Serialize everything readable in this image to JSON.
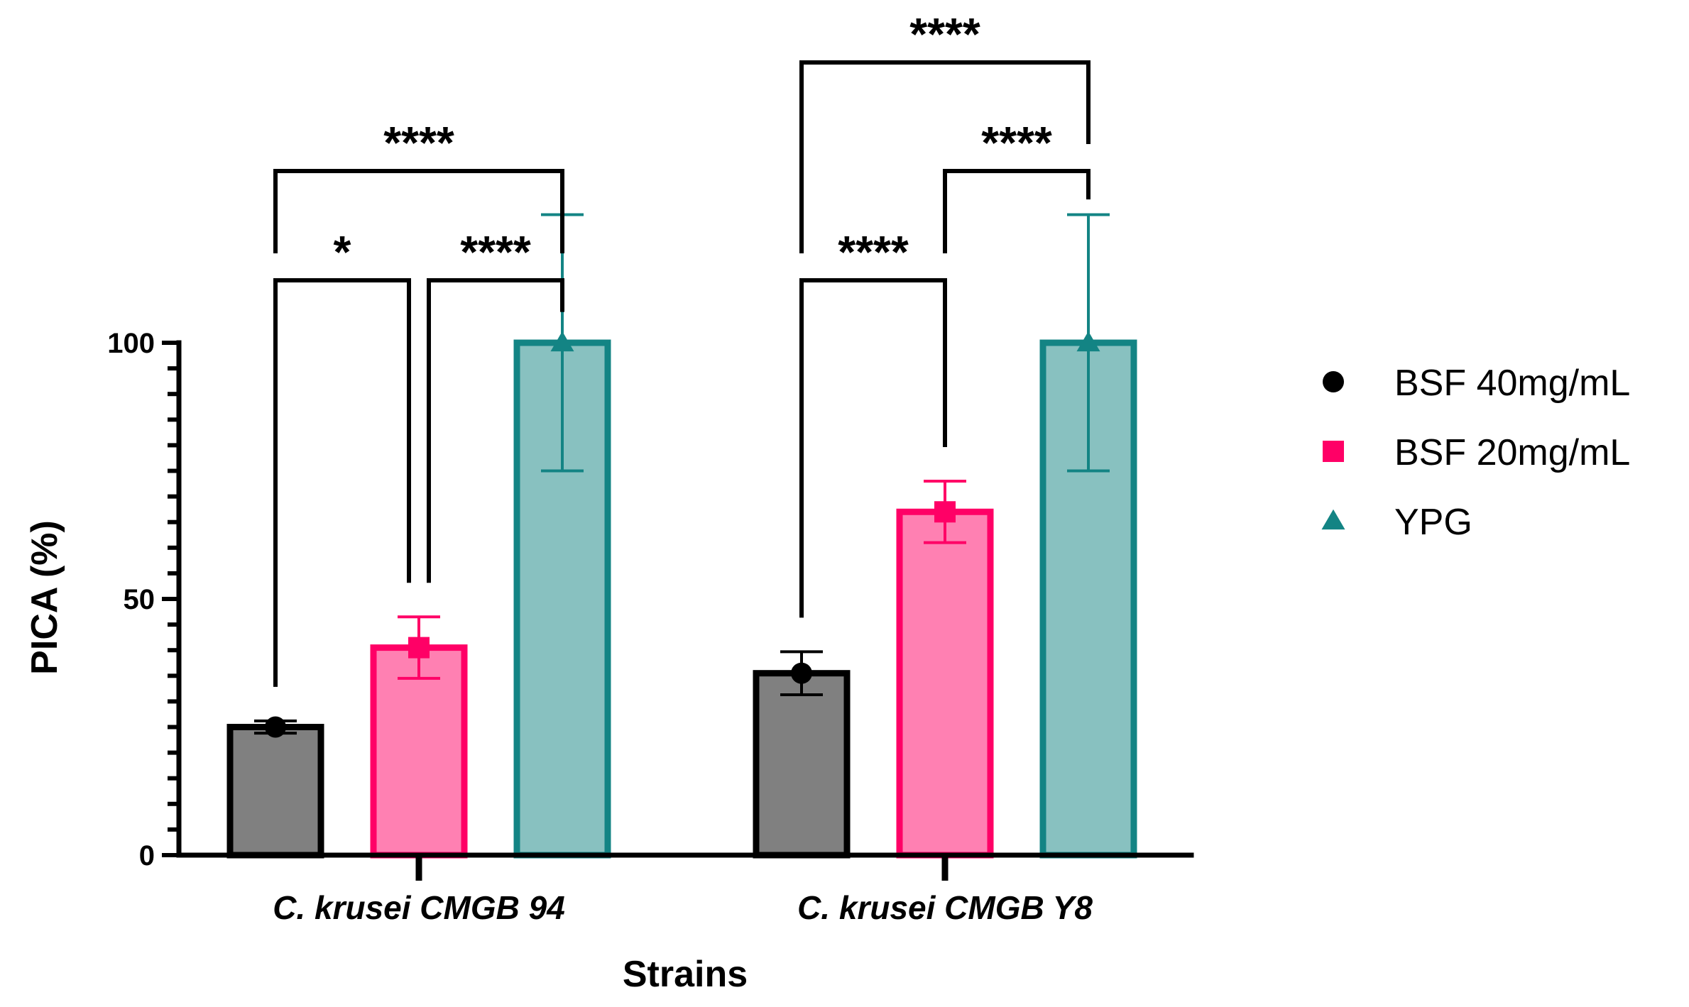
{
  "chart_data": {
    "type": "bar",
    "title": "",
    "xlabel": "Strains",
    "ylabel": "PICA (%)",
    "ylim": [
      0,
      100
    ],
    "yticks": [
      0,
      50,
      100
    ],
    "categories": [
      "C. krusei CMGB 94",
      "C. krusei CMGB Y8"
    ],
    "series": [
      {
        "name": "BSF 40mg/mL",
        "marker": "circle",
        "color": "#000000",
        "fill": "#808080",
        "stroke": "#000000",
        "values": [
          25,
          35.5
        ],
        "errors": [
          1.2,
          4.2
        ]
      },
      {
        "name": "BSF 20mg/mL",
        "marker": "square",
        "color": "#FF0066",
        "fill": "#FF80B2",
        "stroke": "#FF0066",
        "values": [
          40.5,
          67
        ],
        "errors": [
          6,
          6
        ]
      },
      {
        "name": "YPG",
        "marker": "triangle",
        "color": "#138484",
        "fill": "#88C1C0",
        "stroke": "#138484",
        "values": [
          100,
          100
        ],
        "errors": [
          25,
          25
        ]
      }
    ],
    "significance": [
      {
        "category": 0,
        "from": 0,
        "to": 2,
        "label": "****",
        "level": 2
      },
      {
        "category": 0,
        "from": 0,
        "to": 1,
        "label": "*",
        "level": 1
      },
      {
        "category": 0,
        "from": 1,
        "to": 2,
        "label": "****",
        "level": 1
      },
      {
        "category": 1,
        "from": 0,
        "to": 2,
        "label": "****",
        "level": 3
      },
      {
        "category": 1,
        "from": 1,
        "to": 2,
        "label": "****",
        "level": 2
      },
      {
        "category": 1,
        "from": 0,
        "to": 1,
        "label": "****",
        "level": 1
      }
    ]
  }
}
